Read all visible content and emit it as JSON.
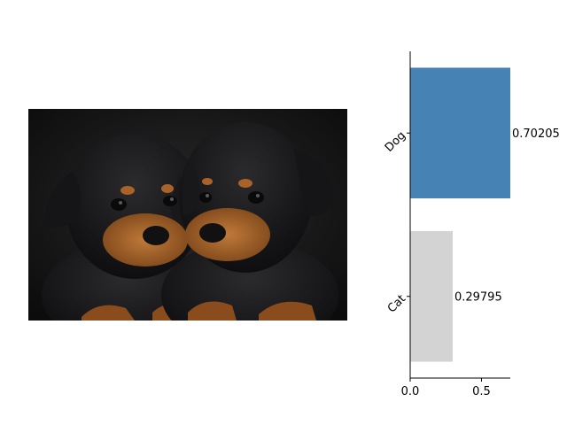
{
  "image": {
    "subject": "two rottweiler puppies",
    "icon": "photo-rottweiler-puppies"
  },
  "chart_data": {
    "type": "bar",
    "orientation": "horizontal",
    "categories": [
      "Dog",
      "Cat"
    ],
    "values": [
      0.70205,
      0.29795
    ],
    "value_labels": [
      "0.70205",
      "0.29795"
    ],
    "colors": [
      "#4682b4",
      "#d3d3d3"
    ],
    "xlim": [
      0,
      0.70205
    ],
    "xticks": [
      0.0,
      0.5
    ],
    "xtick_labels": [
      "0.0",
      "0.5"
    ],
    "grid": false,
    "title": "",
    "xlabel": "",
    "ylabel": ""
  }
}
